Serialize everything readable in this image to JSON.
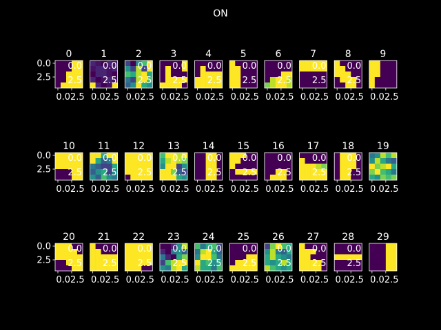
{
  "chart_data": {
    "type": "heatmap",
    "title": "ON",
    "colormap": "viridis",
    "colors": {
      "background": "#000000",
      "text": "#ffffff",
      "low": "#440154",
      "high": "#fde725"
    },
    "grid": false,
    "y_tick_labels": [
      "0.0",
      "2.5"
    ],
    "x_tick_labels": [
      "0.0",
      "2.5"
    ],
    "x_tick_label_text": "0.02.5",
    "overlay_labels": [
      "0.0",
      "2.5"
    ],
    "panels": [
      {
        "label": "0",
        "cells": [
          [
            0,
            0,
            0,
            1,
            1
          ],
          [
            0,
            0,
            0,
            1,
            1
          ],
          [
            0,
            0,
            1,
            1,
            1
          ],
          [
            0,
            0,
            1,
            1,
            1
          ],
          [
            0,
            1,
            1,
            1,
            1
          ]
        ]
      },
      {
        "label": "1",
        "cells": [
          [
            0.1,
            0.05,
            0,
            0.1,
            0.05
          ],
          [
            0.05,
            0.1,
            0.1,
            0.05,
            0.1
          ],
          [
            0,
            0.1,
            0.1,
            0.05,
            0
          ],
          [
            0.1,
            0,
            0.05,
            0.1,
            0.05
          ],
          [
            1,
            0.1,
            0,
            0.05,
            1
          ]
        ]
      },
      {
        "label": "2",
        "cells": [
          [
            0.2,
            0,
            0.5,
            0.7,
            1
          ],
          [
            0.5,
            0.2,
            0.9,
            0.2,
            1
          ],
          [
            0.7,
            0.6,
            0.9,
            1,
            0.6
          ],
          [
            0.4,
            0.2,
            0.9,
            1,
            0.7
          ],
          [
            0.3,
            0.5,
            1,
            0.6,
            0.5
          ]
        ]
      },
      {
        "label": "3",
        "cells": [
          [
            0,
            0,
            0,
            0,
            1
          ],
          [
            0,
            1,
            0,
            0,
            1
          ],
          [
            0,
            1,
            0,
            0,
            0
          ],
          [
            0,
            1,
            1,
            1,
            1
          ],
          [
            1,
            1,
            1,
            1,
            0
          ]
        ]
      },
      {
        "label": "4",
        "cells": [
          [
            0,
            0,
            0,
            0,
            0
          ],
          [
            0,
            1,
            0,
            0,
            0
          ],
          [
            0,
            1,
            1,
            1,
            1
          ],
          [
            1,
            1,
            1,
            1,
            1
          ],
          [
            1,
            1,
            1,
            1,
            1
          ]
        ]
      },
      {
        "label": "5",
        "cells": [
          [
            1,
            0,
            0,
            0,
            0
          ],
          [
            1,
            1,
            0,
            0,
            0
          ],
          [
            1,
            1,
            0,
            0,
            0
          ],
          [
            1,
            1,
            0,
            0,
            0
          ],
          [
            1,
            1,
            0,
            0,
            0
          ]
        ]
      },
      {
        "label": "6",
        "cells": [
          [
            0,
            0,
            0,
            0,
            0
          ],
          [
            0,
            0,
            0,
            0,
            0
          ],
          [
            0,
            0,
            0,
            1,
            1
          ],
          [
            0,
            0.9,
            1,
            1,
            0.9
          ],
          [
            0.8,
            0.9,
            1,
            1,
            0.9
          ]
        ]
      },
      {
        "label": "7",
        "cells": [
          [
            1,
            1,
            1,
            1,
            1
          ],
          [
            1,
            1,
            1,
            1,
            1
          ],
          [
            0,
            0,
            0,
            0,
            0
          ],
          [
            0,
            0,
            0,
            0,
            0
          ],
          [
            0,
            0,
            0,
            0,
            0
          ]
        ]
      },
      {
        "label": "8",
        "cells": [
          [
            1,
            0,
            0,
            0,
            0
          ],
          [
            1,
            1,
            0,
            0,
            0
          ],
          [
            1,
            1,
            1,
            0,
            0
          ],
          [
            0,
            1,
            1,
            1,
            0
          ],
          [
            0,
            0,
            1,
            1,
            0
          ]
        ]
      },
      {
        "label": "9",
        "cells": [
          [
            1,
            1,
            0,
            0,
            0
          ],
          [
            1,
            1,
            0,
            0,
            0
          ],
          [
            1,
            1,
            0,
            0,
            0
          ],
          [
            1,
            0,
            0,
            0,
            0
          ],
          [
            1,
            0,
            0,
            0,
            0
          ]
        ]
      },
      {
        "label": "10",
        "cells": [
          [
            1,
            1,
            1,
            1,
            1
          ],
          [
            1,
            1,
            1,
            1,
            1
          ],
          [
            1,
            1,
            1,
            1,
            1
          ],
          [
            0,
            0,
            0,
            1,
            1
          ],
          [
            0,
            0,
            0,
            1,
            1
          ]
        ]
      },
      {
        "label": "11",
        "cells": [
          [
            1,
            1,
            0.6,
            1,
            1
          ],
          [
            1,
            0.6,
            0.3,
            0.4,
            1
          ],
          [
            0.4,
            0.3,
            0.2,
            0.2,
            0.6
          ],
          [
            0.3,
            0.5,
            0.6,
            0.2,
            0.5
          ],
          [
            0.5,
            0.3,
            0.7,
            0.5,
            0.4
          ]
        ]
      },
      {
        "label": "12",
        "cells": [
          [
            1,
            1,
            1,
            1,
            1
          ],
          [
            1,
            1,
            1,
            1,
            1
          ],
          [
            1,
            1,
            1,
            1,
            1
          ],
          [
            1,
            1,
            1,
            1,
            1
          ],
          [
            0,
            1,
            1,
            1,
            1
          ]
        ]
      },
      {
        "label": "13",
        "cells": [
          [
            0.7,
            1,
            1,
            0.9,
            1
          ],
          [
            0.6,
            0.9,
            1,
            0.9,
            0.8
          ],
          [
            0.5,
            1,
            1,
            0.2,
            0.5
          ],
          [
            1,
            1,
            0.8,
            0.3,
            0.2
          ],
          [
            1,
            1,
            1,
            0.6,
            0.5
          ]
        ]
      },
      {
        "label": "14",
        "cells": [
          [
            0,
            0,
            1,
            1,
            0
          ],
          [
            0,
            0,
            1,
            1,
            0
          ],
          [
            0,
            0,
            1,
            1,
            0
          ],
          [
            0,
            0,
            1,
            1,
            0
          ],
          [
            0,
            0,
            1,
            1,
            0
          ]
        ]
      },
      {
        "label": "15",
        "cells": [
          [
            1,
            1,
            1,
            0,
            0
          ],
          [
            1,
            1,
            0,
            0,
            0
          ],
          [
            1,
            0,
            0,
            0,
            0
          ],
          [
            0,
            1,
            1,
            1,
            1
          ],
          [
            0,
            0,
            0,
            0,
            0
          ]
        ]
      },
      {
        "label": "16",
        "cells": [
          [
            0,
            0,
            0,
            0,
            0
          ],
          [
            0,
            0,
            0,
            0,
            0
          ],
          [
            0,
            0,
            0,
            0,
            0
          ],
          [
            0,
            0,
            1,
            1,
            0
          ],
          [
            0,
            1,
            1,
            1,
            0
          ]
        ]
      },
      {
        "label": "17",
        "cells": [
          [
            0,
            0,
            0,
            0,
            0
          ],
          [
            1,
            0,
            0,
            0,
            0
          ],
          [
            1,
            1,
            1,
            0.9,
            0.8
          ],
          [
            1,
            1,
            1,
            1,
            1
          ],
          [
            1,
            1,
            1,
            1,
            1
          ]
        ]
      },
      {
        "label": "18",
        "cells": [
          [
            0,
            1,
            1,
            1,
            0
          ],
          [
            0,
            1,
            1,
            1,
            0
          ],
          [
            0,
            1,
            1,
            1,
            0
          ],
          [
            0,
            1,
            1,
            0,
            0
          ],
          [
            0,
            1,
            1,
            0,
            0
          ]
        ]
      },
      {
        "label": "19",
        "cells": [
          [
            0.4,
            0.5,
            0.9,
            0.7,
            0.9
          ],
          [
            0.5,
            0.9,
            0.6,
            0.4,
            0.3
          ],
          [
            1,
            0.8,
            0.9,
            1,
            0.6
          ],
          [
            0.8,
            1,
            0.7,
            0.6,
            0.4
          ],
          [
            0.6,
            0.5,
            0.8,
            0.7,
            0.8
          ]
        ]
      },
      {
        "label": "20",
        "cells": [
          [
            1,
            1,
            1,
            0,
            0
          ],
          [
            1,
            1,
            1,
            1,
            0
          ],
          [
            1,
            1,
            1,
            1,
            1
          ],
          [
            0,
            0,
            1,
            1,
            1
          ],
          [
            0,
            0,
            0,
            1,
            1
          ]
        ]
      },
      {
        "label": "21",
        "cells": [
          [
            1,
            0,
            0,
            0,
            0
          ],
          [
            1,
            1,
            0,
            0,
            0
          ],
          [
            1,
            1,
            1,
            1,
            1
          ],
          [
            1,
            1,
            1,
            1,
            1
          ],
          [
            1,
            1,
            1,
            1,
            1
          ]
        ]
      },
      {
        "label": "22",
        "cells": [
          [
            1,
            1,
            1,
            1,
            1
          ],
          [
            1,
            1,
            1,
            1,
            1
          ],
          [
            1,
            1,
            1,
            1,
            1
          ],
          [
            1,
            1,
            1,
            1,
            1
          ],
          [
            1,
            1,
            1,
            0,
            0
          ]
        ]
      },
      {
        "label": "23",
        "cells": [
          [
            0,
            0,
            0.1,
            0.5,
            0.9
          ],
          [
            0.1,
            0,
            0.4,
            0.5,
            0.3
          ],
          [
            0.4,
            0.1,
            0,
            0.6,
            0.8
          ],
          [
            0.2,
            0.7,
            0.9,
            1,
            1
          ],
          [
            0.5,
            0.4,
            0.9,
            1,
            0.6
          ]
        ]
      },
      {
        "label": "24",
        "cells": [
          [
            0.7,
            0.4,
            0.6,
            0.7,
            0.2
          ],
          [
            0.4,
            0.9,
            1,
            0.6,
            0.3
          ],
          [
            0.5,
            1,
            1,
            0.7,
            0.4
          ],
          [
            1,
            0.6,
            0.7,
            0.5,
            0.6
          ],
          [
            0.9,
            0.6,
            0.6,
            0.4,
            0.7
          ]
        ]
      },
      {
        "label": "25",
        "cells": [
          [
            0,
            0,
            0,
            0,
            0
          ],
          [
            0,
            0,
            0,
            0,
            0
          ],
          [
            0,
            0,
            0,
            1,
            1
          ],
          [
            0,
            1,
            1,
            1,
            1
          ],
          [
            1,
            1,
            1,
            1,
            1
          ]
        ]
      },
      {
        "label": "26",
        "cells": [
          [
            0.2,
            0.8,
            1,
            0.7,
            0.6
          ],
          [
            0.5,
            0.9,
            0.4,
            0.3,
            0.6
          ],
          [
            0.6,
            0.9,
            0.6,
            0.5,
            0.4
          ],
          [
            0.6,
            0.5,
            0.6,
            0.9,
            0.6
          ],
          [
            0.9,
            0.7,
            0.6,
            0.5,
            0.6
          ]
        ]
      },
      {
        "label": "27",
        "cells": [
          [
            1,
            0,
            0,
            0,
            0
          ],
          [
            1,
            1,
            1,
            0,
            0
          ],
          [
            1,
            1,
            0,
            0,
            0
          ],
          [
            1,
            1,
            1,
            1,
            0
          ],
          [
            1,
            1,
            1,
            1,
            0
          ]
        ]
      },
      {
        "label": "28",
        "cells": [
          [
            0,
            0,
            0,
            0,
            0
          ],
          [
            0,
            0,
            0,
            0,
            0
          ],
          [
            1,
            1,
            1,
            1,
            1
          ],
          [
            0,
            0,
            0,
            0,
            0
          ],
          [
            0,
            0,
            0,
            0,
            0
          ]
        ]
      },
      {
        "label": "29",
        "cells": [
          [
            0,
            0,
            0,
            1,
            1
          ],
          [
            0,
            0,
            0,
            1,
            1
          ],
          [
            0,
            0,
            0,
            1,
            1
          ],
          [
            0,
            0,
            0,
            1,
            1
          ],
          [
            0,
            0,
            0,
            1,
            1
          ]
        ]
      }
    ]
  }
}
